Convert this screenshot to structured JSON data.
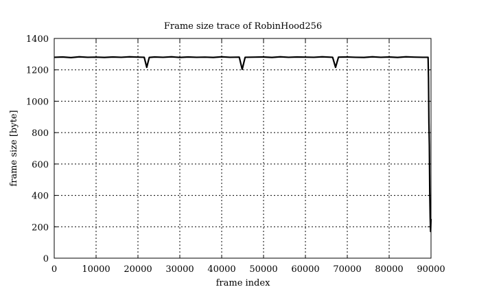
{
  "chart_data": {
    "type": "line",
    "title": "Frame size trace of RobinHood256",
    "xlabel": "frame index",
    "ylabel": "frame size [byte]",
    "xlim": [
      0,
      90000
    ],
    "ylim": [
      0,
      1400
    ],
    "xticks": [
      0,
      10000,
      20000,
      30000,
      40000,
      50000,
      60000,
      70000,
      80000,
      90000
    ],
    "yticks": [
      0,
      200,
      400,
      600,
      800,
      1000,
      1200,
      1400
    ],
    "grid": true,
    "grid_style": "dotted",
    "line_color": "#000000",
    "series": [
      {
        "x": [
          0,
          2000,
          4000,
          6000,
          8000,
          10000,
          12000,
          14000,
          16000,
          18000,
          20000,
          21500,
          22100,
          22700,
          24000,
          26000,
          28000,
          30000,
          32000,
          34000,
          36000,
          38000,
          40000,
          42000,
          44200,
          44900,
          45600,
          48000,
          50000,
          52000,
          54000,
          56000,
          58000,
          60000,
          62000,
          64000,
          66500,
          67200,
          67900,
          70000,
          72000,
          74000,
          76000,
          78000,
          80000,
          82000,
          84000,
          86000,
          88000,
          89300,
          89400,
          89500,
          89600,
          89700,
          89800,
          89900,
          90000
        ],
        "y": [
          1280,
          1282,
          1278,
          1283,
          1280,
          1281,
          1279,
          1282,
          1280,
          1283,
          1281,
          1280,
          1216,
          1279,
          1282,
          1280,
          1283,
          1279,
          1282,
          1280,
          1281,
          1279,
          1283,
          1280,
          1281,
          1203,
          1280,
          1281,
          1282,
          1279,
          1283,
          1280,
          1282,
          1281,
          1280,
          1283,
          1280,
          1216,
          1281,
          1282,
          1280,
          1279,
          1283,
          1280,
          1282,
          1279,
          1283,
          1281,
          1280,
          1280,
          1150,
          860,
          720,
          420,
          260,
          170,
          250
        ]
      }
    ]
  }
}
